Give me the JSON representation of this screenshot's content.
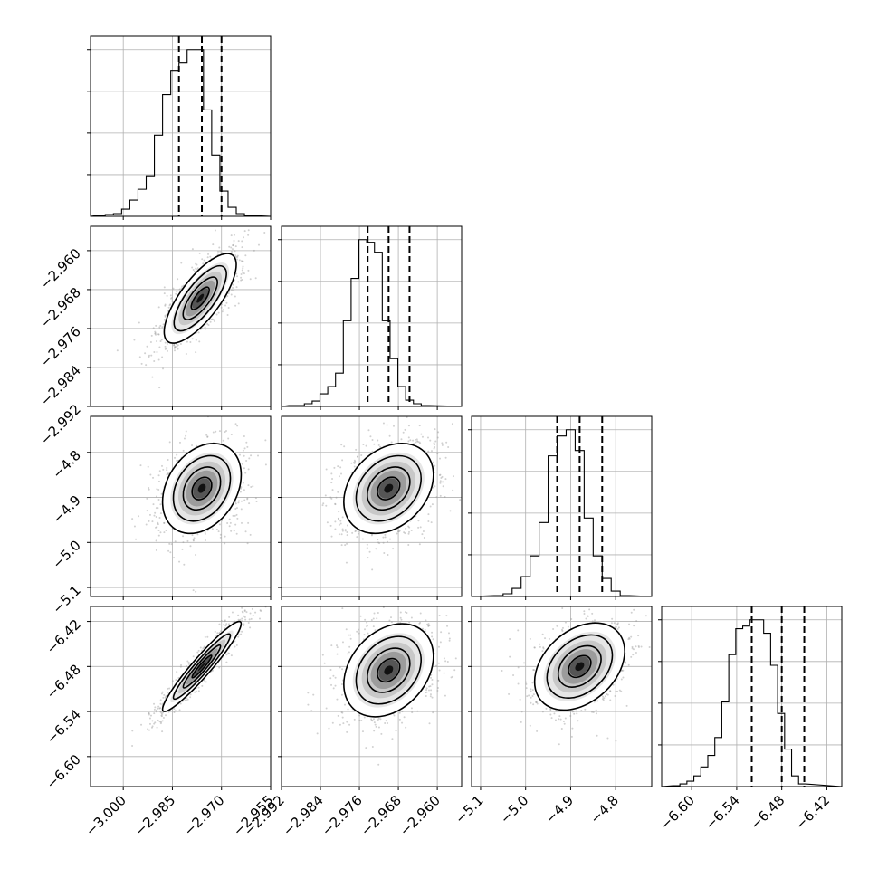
{
  "chart_data": {
    "type": "corner",
    "grid": true,
    "parameters": [
      {
        "range": [
          -3.01,
          -2.955
        ],
        "ticks": [
          {
            "value": -3.0,
            "label": "−3.000"
          },
          {
            "value": -2.985,
            "label": "−2.985"
          },
          {
            "value": -2.97,
            "label": "−2.970"
          },
          {
            "value": -2.955,
            "label": "−2.955"
          }
        ],
        "quantiles": [
          -2.983,
          -2.976,
          -2.97
        ],
        "hist_start": -3.008,
        "hist_step": 0.0025,
        "hist_counts": [
          1,
          2,
          3,
          8,
          18,
          30,
          45,
          90,
          135,
          162,
          170,
          185,
          185,
          118,
          68,
          28,
          10,
          3,
          1
        ]
      },
      {
        "range": [
          -2.992,
          -2.955
        ],
        "ticks": [
          {
            "value": -2.992,
            "label": "−2.992"
          },
          {
            "value": -2.984,
            "label": "−2.984"
          },
          {
            "value": -2.976,
            "label": "−2.976"
          },
          {
            "value": -2.968,
            "label": "−2.968"
          },
          {
            "value": -2.96,
            "label": "−2.960"
          }
        ],
        "quantiles": [
          -2.9743,
          -2.97,
          -2.9657
        ],
        "hist_start": -2.9905,
        "hist_step": 0.0016,
        "hist_counts": [
          1,
          1,
          3,
          6,
          14,
          22,
          37,
          95,
          142,
          185,
          182,
          171,
          95,
          53,
          22,
          7,
          3,
          1
        ]
      },
      {
        "range": [
          -5.12,
          -4.72
        ],
        "ticks": [
          {
            "value": -5.1,
            "label": "−5.1"
          },
          {
            "value": -5.0,
            "label": "−5.0"
          },
          {
            "value": -4.9,
            "label": "−4.9"
          },
          {
            "value": -4.8,
            "label": "−4.8"
          }
        ],
        "quantiles": [
          -4.93,
          -4.88,
          -4.83
        ],
        "hist_start": -5.07,
        "hist_step": 0.02,
        "hist_counts": [
          1,
          3,
          9,
          22,
          45,
          82,
          156,
          178,
          185,
          162,
          87,
          45,
          20,
          6,
          1
        ]
      },
      {
        "range": [
          -6.64,
          -6.4
        ],
        "ticks": [
          {
            "value": -6.6,
            "label": "−6.60"
          },
          {
            "value": -6.54,
            "label": "−6.54"
          },
          {
            "value": -6.48,
            "label": "−6.48"
          },
          {
            "value": -6.42,
            "label": "−6.42"
          }
        ],
        "quantiles": [
          -6.52,
          -6.48,
          -6.45
        ],
        "hist_start": -6.625,
        "hist_step": 0.0093,
        "hist_counts": [
          1,
          3,
          6,
          12,
          22,
          35,
          55,
          95,
          148,
          177,
          180,
          187,
          187,
          172,
          136,
          82,
          42,
          12,
          3
        ]
      }
    ],
    "pairs": [
      {
        "row": 1,
        "col": 0,
        "center": [
          -2.9765,
          -2.9698
        ],
        "sigma": [
          0.0055,
          0.0046
        ],
        "rho": 0.75
      },
      {
        "row": 2,
        "col": 0,
        "center": [
          -2.976,
          -4.88
        ],
        "sigma": [
          0.006,
          0.05
        ],
        "rho": 0.3
      },
      {
        "row": 2,
        "col": 1,
        "center": [
          -2.97,
          -4.88
        ],
        "sigma": [
          0.0046,
          0.05
        ],
        "rho": 0.3
      },
      {
        "row": 3,
        "col": 0,
        "center": [
          -2.976,
          -6.48
        ],
        "sigma": [
          0.006,
          0.03
        ],
        "rho": 0.95
      },
      {
        "row": 3,
        "col": 1,
        "center": [
          -2.97,
          -6.485
        ],
        "sigma": [
          0.0046,
          0.031
        ],
        "rho": 0.3
      },
      {
        "row": 3,
        "col": 2,
        "center": [
          -4.88,
          -6.48
        ],
        "sigma": [
          0.05,
          0.029
        ],
        "rho": 0.35
      }
    ]
  }
}
